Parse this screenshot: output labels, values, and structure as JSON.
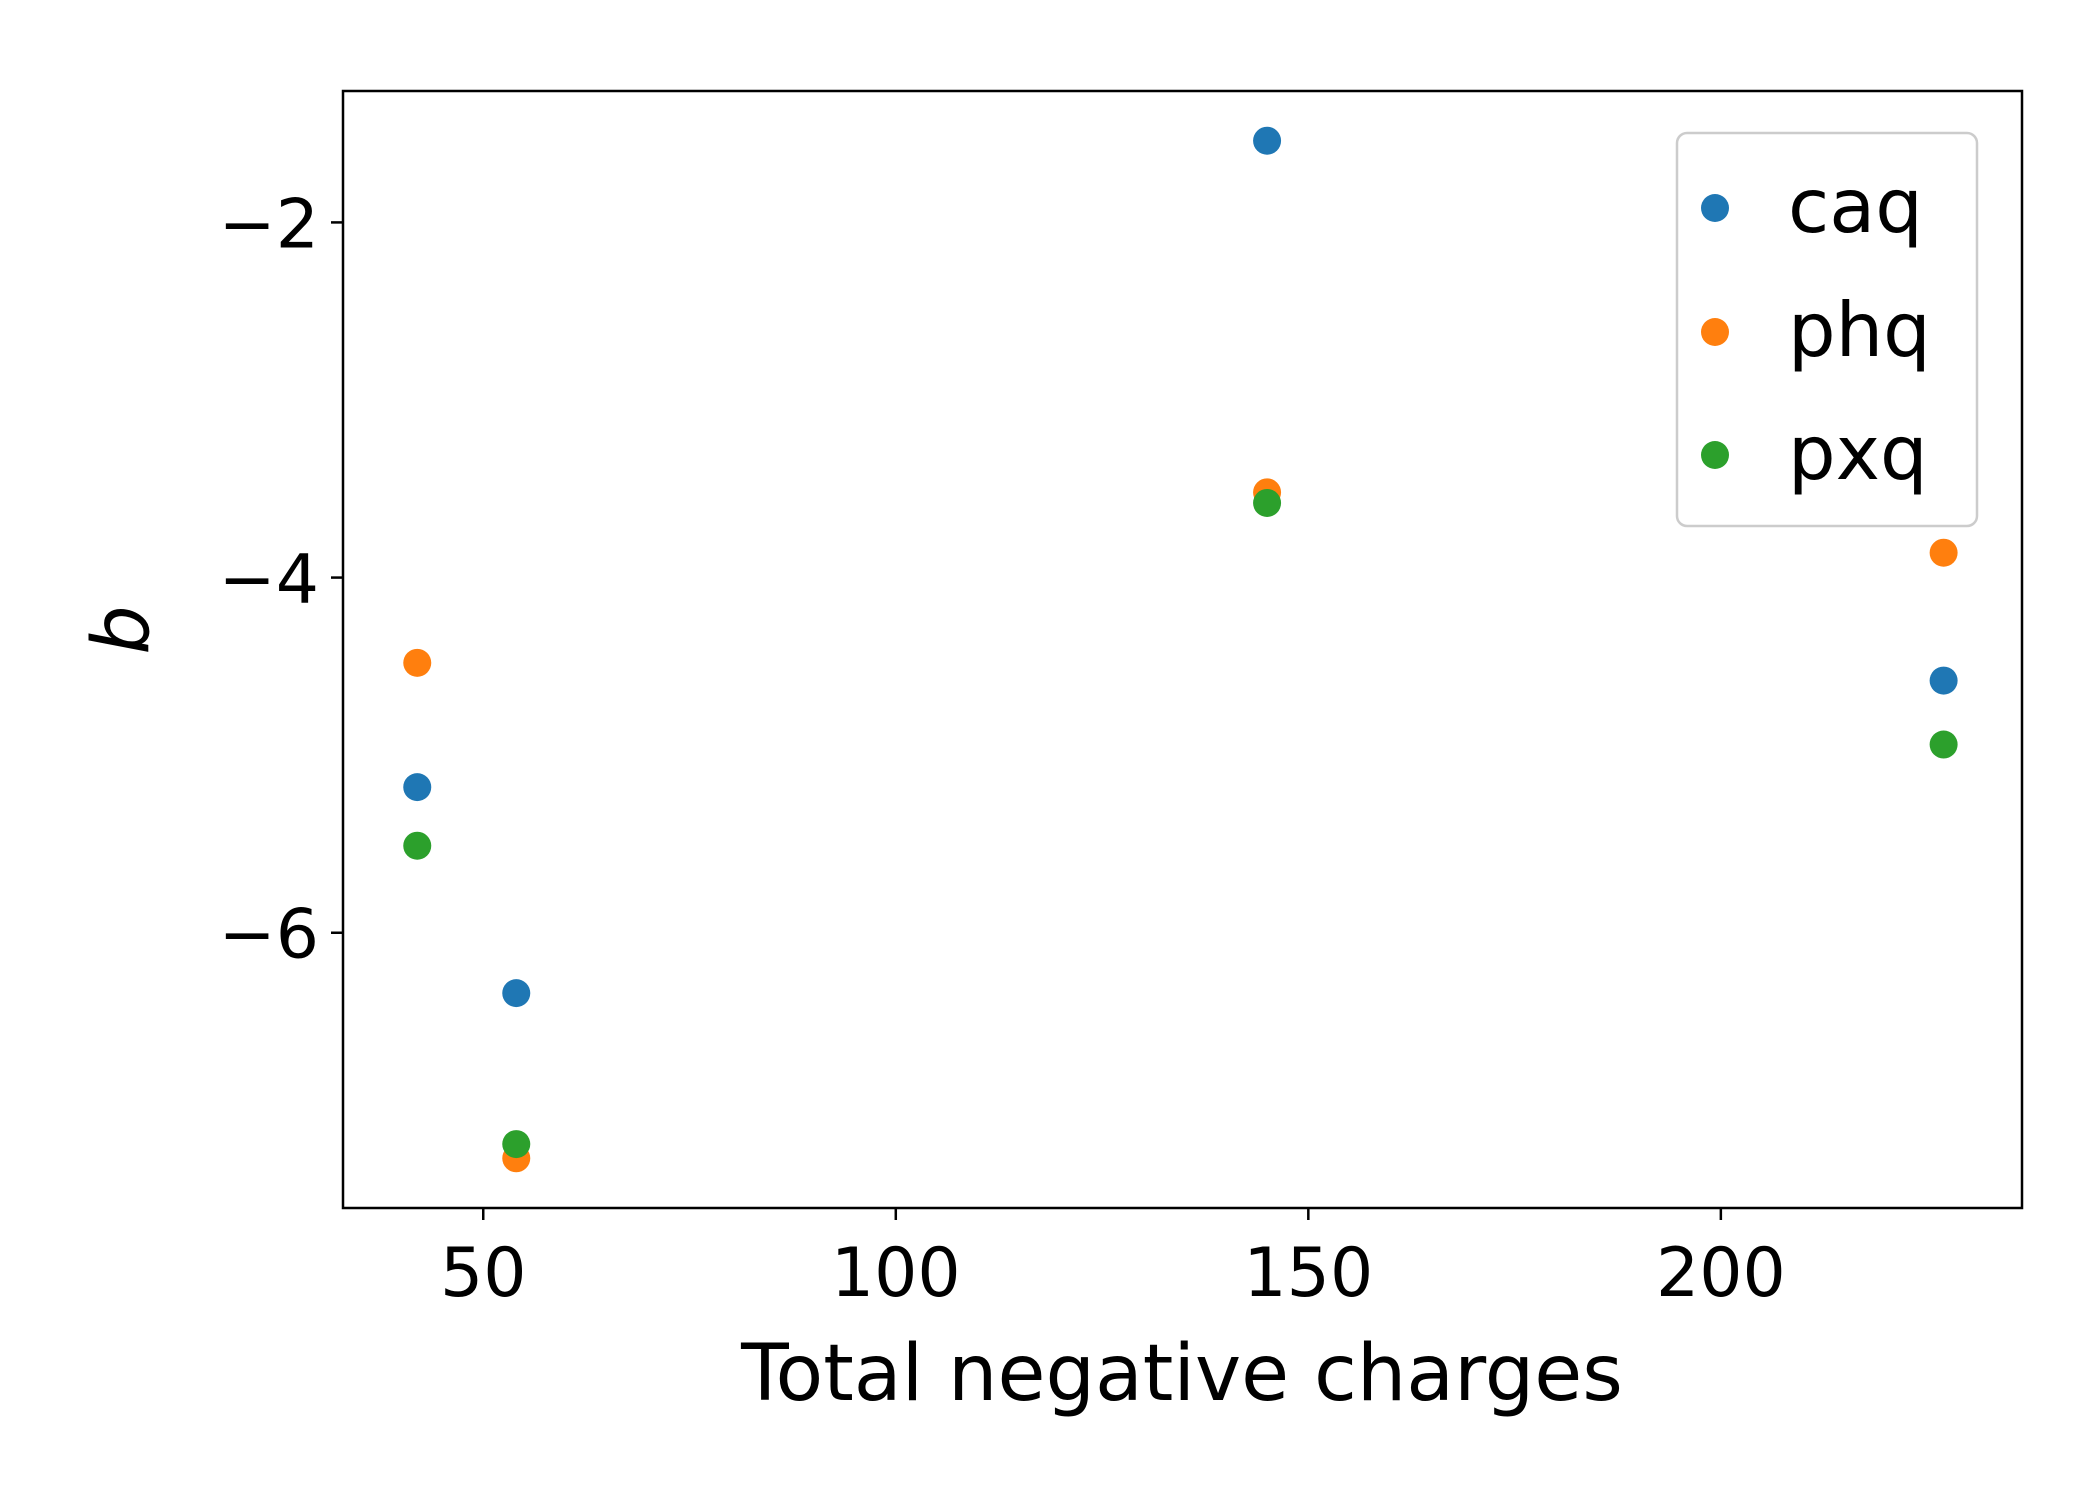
{
  "chart_data": {
    "type": "scatter",
    "title": "",
    "xlabel": "Total negative charges",
    "ylabel": "b",
    "xlim": [
      33,
      236.5
    ],
    "ylim": [
      -7.55,
      -1.26
    ],
    "xticks": [
      50,
      100,
      150,
      200
    ],
    "yticks": [
      -2,
      -4,
      -6
    ],
    "xtick_labels": [
      "50",
      "100",
      "150",
      "200"
    ],
    "ytick_labels": [
      "−2",
      "−4",
      "−6"
    ],
    "grid": false,
    "legend_position": "top-right",
    "series": [
      {
        "name": "caq",
        "color": "#1f77b4",
        "points": [
          {
            "x": 42,
            "y": -5.18
          },
          {
            "x": 54,
            "y": -6.34
          },
          {
            "x": 145,
            "y": -1.54
          },
          {
            "x": 227,
            "y": -4.58
          }
        ]
      },
      {
        "name": "phq",
        "color": "#ff7f0e",
        "points": [
          {
            "x": 42,
            "y": -4.48
          },
          {
            "x": 54,
            "y": -7.27
          },
          {
            "x": 145,
            "y": -3.52
          },
          {
            "x": 227,
            "y": -3.86
          }
        ]
      },
      {
        "name": "pxq",
        "color": "#2ca02c",
        "points": [
          {
            "x": 42,
            "y": -5.51
          },
          {
            "x": 54,
            "y": -7.19
          },
          {
            "x": 145,
            "y": -3.58
          },
          {
            "x": 227,
            "y": -4.94
          }
        ]
      }
    ]
  }
}
